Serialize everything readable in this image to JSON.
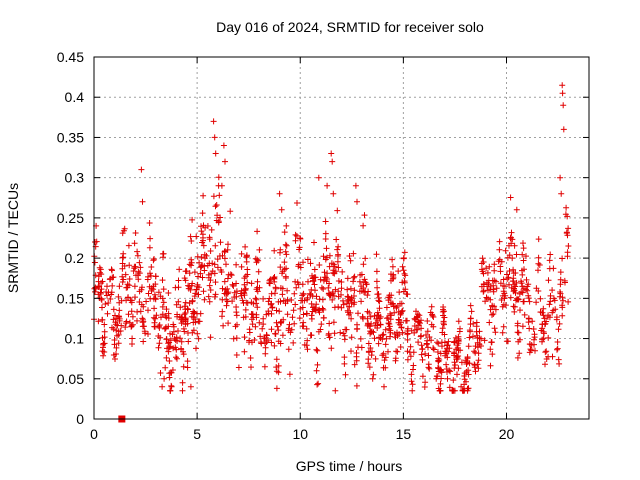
{
  "chart_data": {
    "type": "scatter",
    "title": "Day 016 of 2024, SRMTID for receiver solo",
    "xlabel": "GPS time / hours",
    "ylabel": "SRMTID / TECUs",
    "xlim": [
      0,
      24
    ],
    "ylim": [
      0,
      0.45
    ],
    "xticks": [
      0,
      5,
      10,
      15,
      20
    ],
    "yticks": [
      0,
      0.05,
      0.1,
      0.15,
      0.2,
      0.25,
      0.3,
      0.35,
      0.4,
      0.45
    ],
    "grid": true,
    "marker": "plus",
    "color": "#e00000",
    "extra_marker": {
      "shape": "square",
      "x": 1.35,
      "y": 0.0
    },
    "series": [
      {
        "name": "SRMTID",
        "envelope": {
          "x": [
            0.0,
            0.5,
            1.0,
            1.5,
            2.0,
            2.5,
            3.0,
            3.5,
            4.0,
            4.5,
            5.0,
            5.5,
            6.0,
            6.5,
            7.0,
            7.5,
            8.0,
            8.5,
            9.0,
            9.5,
            10.0,
            10.5,
            11.0,
            11.5,
            12.0,
            12.5,
            13.0,
            13.5,
            14.0,
            14.5,
            15.0,
            15.5,
            16.0,
            16.5,
            17.0,
            17.5,
            18.0,
            18.5,
            19.0,
            19.5,
            20.0,
            20.5,
            21.0,
            21.5,
            22.0,
            22.5,
            23.0
          ],
          "center": [
            0.16,
            0.14,
            0.13,
            0.15,
            0.17,
            0.16,
            0.15,
            0.1,
            0.11,
            0.14,
            0.16,
            0.2,
            0.22,
            0.16,
            0.14,
            0.14,
            0.13,
            0.12,
            0.14,
            0.14,
            0.16,
            0.13,
            0.15,
            0.18,
            0.15,
            0.13,
            0.14,
            0.12,
            0.11,
            0.13,
            0.14,
            0.1,
            0.09,
            0.09,
            0.08,
            0.07,
            0.07,
            0.09,
            0.16,
            0.16,
            0.17,
            0.15,
            0.14,
            0.13,
            0.12,
            0.14,
            0.17
          ],
          "spread": [
            0.05,
            0.04,
            0.04,
            0.05,
            0.05,
            0.05,
            0.05,
            0.05,
            0.05,
            0.05,
            0.06,
            0.06,
            0.07,
            0.05,
            0.05,
            0.04,
            0.04,
            0.04,
            0.05,
            0.05,
            0.06,
            0.05,
            0.06,
            0.06,
            0.05,
            0.05,
            0.05,
            0.05,
            0.04,
            0.05,
            0.05,
            0.03,
            0.03,
            0.03,
            0.03,
            0.03,
            0.02,
            0.03,
            0.05,
            0.05,
            0.05,
            0.05,
            0.04,
            0.04,
            0.04,
            0.05,
            0.06
          ]
        },
        "peaks": [
          {
            "x": 2.3,
            "y": 0.31
          },
          {
            "x": 2.35,
            "y": 0.27
          },
          {
            "x": 5.8,
            "y": 0.37
          },
          {
            "x": 5.85,
            "y": 0.35
          },
          {
            "x": 5.9,
            "y": 0.33
          },
          {
            "x": 6.3,
            "y": 0.34
          },
          {
            "x": 6.35,
            "y": 0.32
          },
          {
            "x": 6.2,
            "y": 0.29
          },
          {
            "x": 11.5,
            "y": 0.33
          },
          {
            "x": 11.55,
            "y": 0.32
          },
          {
            "x": 11.3,
            "y": 0.29
          },
          {
            "x": 11.6,
            "y": 0.28
          },
          {
            "x": 10.9,
            "y": 0.3
          },
          {
            "x": 12.7,
            "y": 0.29
          },
          {
            "x": 12.75,
            "y": 0.27
          },
          {
            "x": 22.7,
            "y": 0.415
          },
          {
            "x": 22.72,
            "y": 0.405
          },
          {
            "x": 22.75,
            "y": 0.39
          },
          {
            "x": 22.78,
            "y": 0.36
          },
          {
            "x": 22.6,
            "y": 0.3
          },
          {
            "x": 22.65,
            "y": 0.28
          },
          {
            "x": 9.0,
            "y": 0.28
          },
          {
            "x": 9.1,
            "y": 0.26
          },
          {
            "x": 20.5,
            "y": 0.26
          },
          {
            "x": 3.3,
            "y": 0.04
          },
          {
            "x": 3.4,
            "y": 0.05
          },
          {
            "x": 4.7,
            "y": 0.04
          },
          {
            "x": 11.7,
            "y": 0.035
          },
          {
            "x": 17.5,
            "y": 0.035
          },
          {
            "x": 17.8,
            "y": 0.04
          },
          {
            "x": 0.1,
            "y": 0.24
          },
          {
            "x": 0.05,
            "y": 0.22
          }
        ]
      }
    ]
  }
}
